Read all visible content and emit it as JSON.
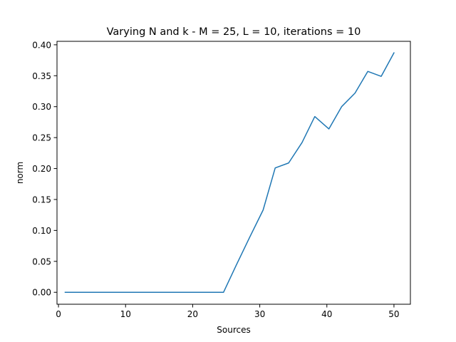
{
  "chart_data": {
    "type": "line",
    "title": "Varying N and k - M = 25, L = 10, iterations = 10",
    "xlabel": "Sources",
    "ylabel": "norm",
    "xlim": [
      -0.22,
      52.45
    ],
    "ylim": [
      -0.0193,
      0.4056
    ],
    "x_ticks": [
      0,
      10,
      20,
      30,
      40,
      50
    ],
    "x_tick_labels": [
      "0",
      "10",
      "20",
      "30",
      "40",
      "50"
    ],
    "y_ticks": [
      0.0,
      0.05,
      0.1,
      0.15,
      0.2,
      0.25,
      0.3,
      0.35,
      0.4
    ],
    "y_tick_labels": [
      "0.00",
      "0.05",
      "0.10",
      "0.15",
      "0.20",
      "0.25",
      "0.30",
      "0.35",
      "0.40"
    ],
    "grid": false,
    "legend": "none",
    "series": [
      {
        "color": "#1f77b4",
        "x": [
          1,
          3,
          5,
          7,
          9,
          11,
          13,
          15,
          17,
          19,
          21,
          23,
          24.6,
          26.5,
          28.5,
          30.5,
          32.3,
          34.3,
          36.3,
          38.2,
          40.3,
          42.2,
          44.2,
          46.1,
          48.1,
          50
        ],
        "y": [
          0,
          0,
          0,
          0,
          0,
          0,
          0,
          0,
          0,
          0,
          0,
          0,
          0,
          0.044,
          0.089,
          0.133,
          0.201,
          0.209,
          0.242,
          0.284,
          0.264,
          0.3,
          0.322,
          0.357,
          0.349,
          0.387
        ]
      }
    ]
  }
}
